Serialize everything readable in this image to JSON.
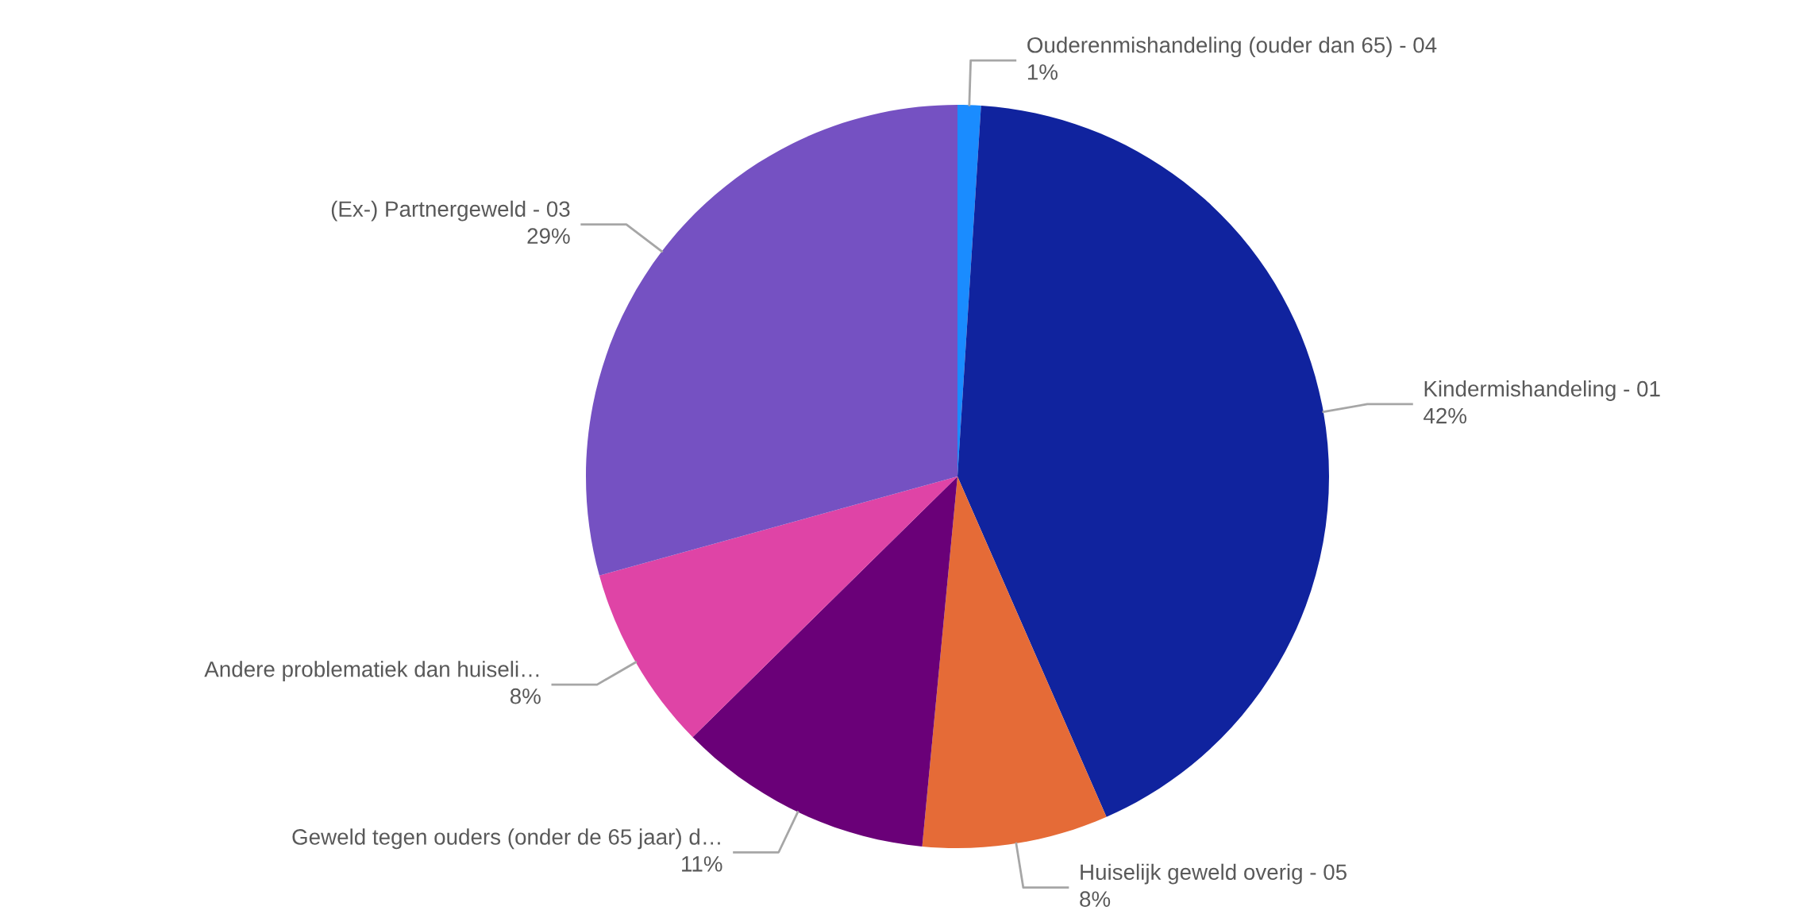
{
  "chart_data": {
    "type": "pie",
    "categories": [
      "Ouderenmishandeling (ouder dan 65) - 04",
      "Kindermishandeling - 01",
      "Huiselijk geweld overig - 05",
      "Geweld tegen ouders (onder de 65 jaar) d…",
      "Andere problematiek dan huiseli…",
      "(Ex-) Partnergeweld - 03"
    ],
    "values": [
      1,
      42,
      8,
      11,
      8,
      29
    ],
    "colors": [
      "#1a8cff",
      "#10239e",
      "#e56b37",
      "#6a0078",
      "#df44a6",
      "#7551c2"
    ],
    "value_labels": [
      "1%",
      "42%",
      "8%",
      "11%",
      "8%",
      "29%"
    ],
    "legend": false
  }
}
